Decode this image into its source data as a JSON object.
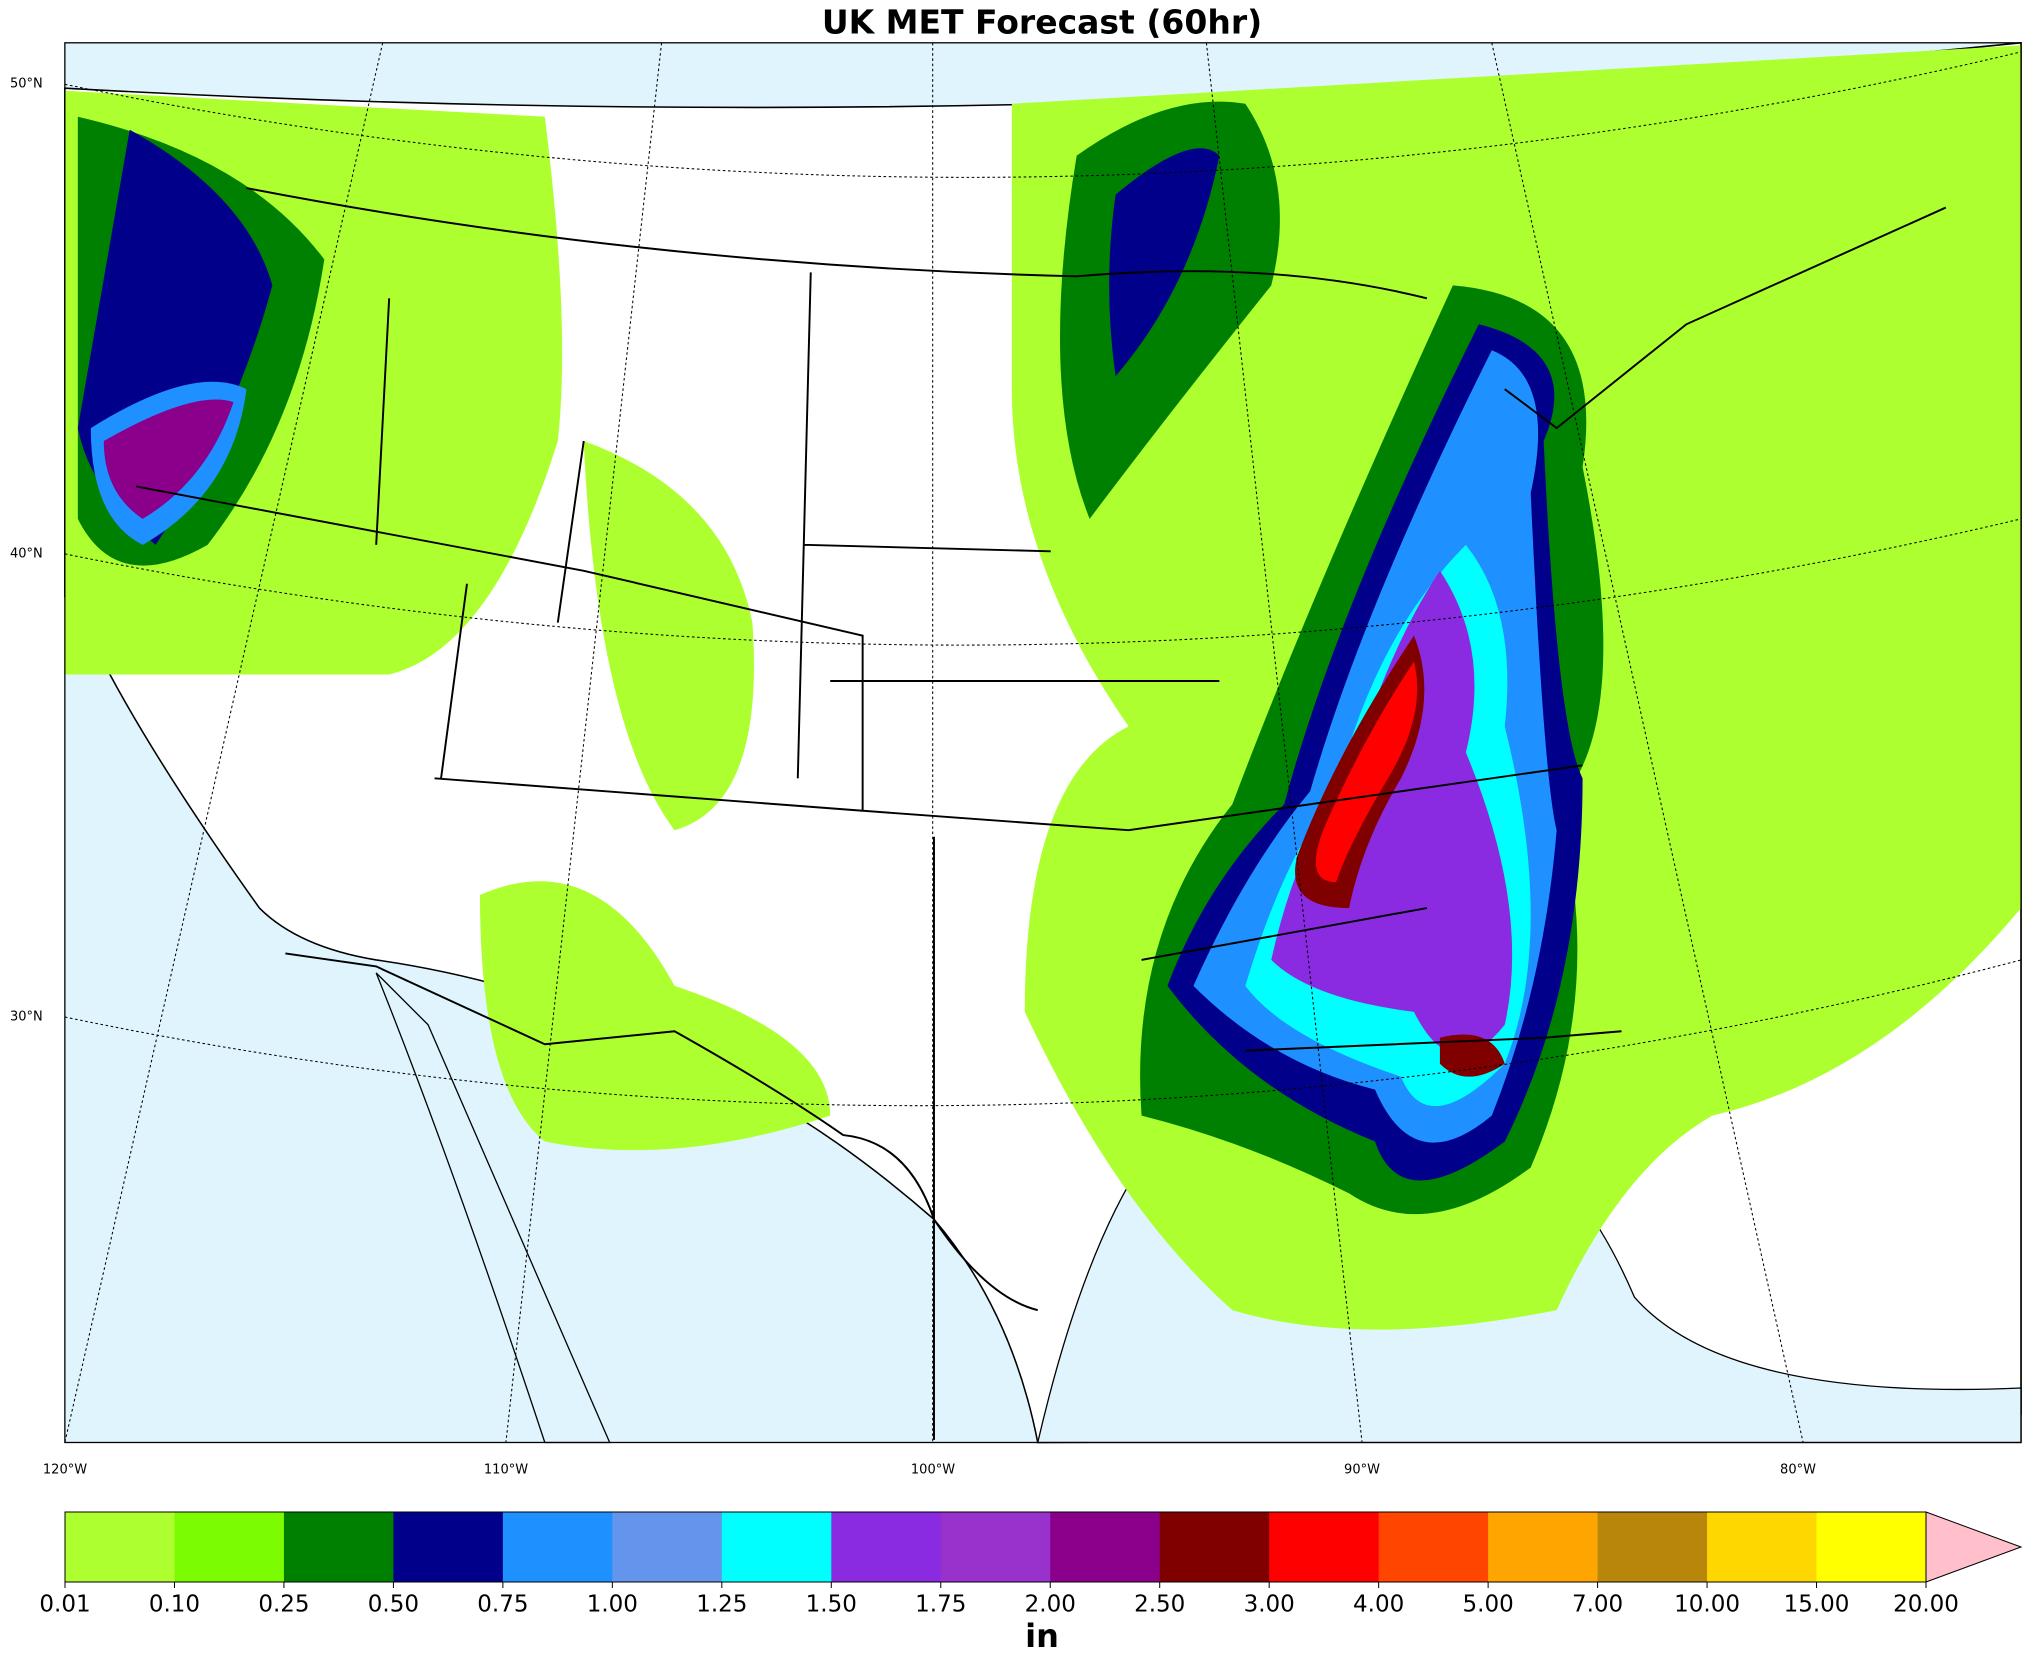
{
  "title": "UK MET Forecast (60hr)",
  "lat_labels": [
    "50°N",
    "40°N",
    "30°N"
  ],
  "lon_labels": [
    "120°W",
    "110°W",
    "100°W",
    "90°W",
    "80°W"
  ],
  "colorbar": {
    "ticks": [
      "0.01",
      "0.10",
      "0.25",
      "0.50",
      "0.75",
      "1.00",
      "1.25",
      "1.50",
      "1.75",
      "2.00",
      "2.50",
      "3.00",
      "4.00",
      "5.00",
      "7.00",
      "10.00",
      "15.00",
      "20.00"
    ],
    "colors": [
      "#adff2f",
      "#7cfc00",
      "#008000",
      "#00008b",
      "#1e90ff",
      "#6495ed",
      "#00ffff",
      "#8a2be2",
      "#9932cc",
      "#8b008b",
      "#800000",
      "#ff0000",
      "#ff4500",
      "#ffa500",
      "#b8860b",
      "#ffd700",
      "#ffff00"
    ],
    "extend_color": "#ffc0cb",
    "label": "in"
  }
}
